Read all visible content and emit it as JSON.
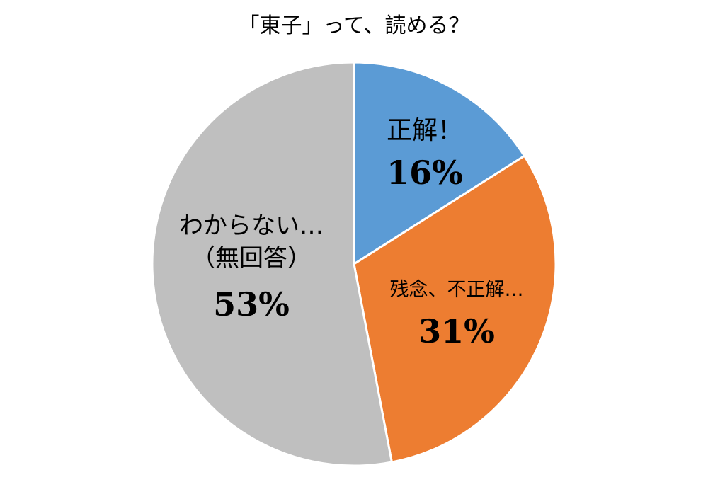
{
  "chart_data": {
    "type": "pie",
    "title": "「東子」って、読める？",
    "slices": [
      {
        "label_lines": [
          "正解！"
        ],
        "percent_text": "16%",
        "value": 16,
        "color": "#5b9bd5"
      },
      {
        "label_lines": [
          "残念、不正解…"
        ],
        "percent_text": "31%",
        "value": 31,
        "color": "#ed7d31"
      },
      {
        "label_lines": [
          "わからない…",
          "（無回答）"
        ],
        "percent_text": "53%",
        "value": 53,
        "color": "#bfbfbf"
      }
    ],
    "start_angle_deg": 0,
    "direction": "clockwise",
    "legend": "none",
    "slice_border_color": "#ffffff"
  }
}
